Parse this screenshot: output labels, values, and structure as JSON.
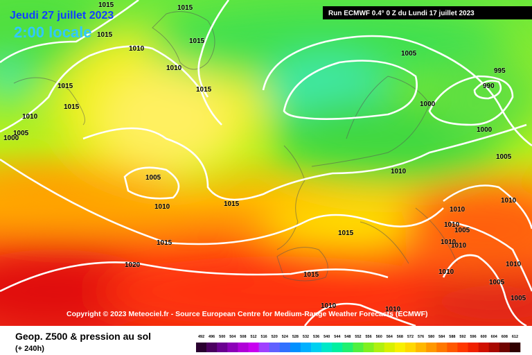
{
  "header": {
    "date": "Jeudi 27 juillet 2023",
    "time": "2:00 locale",
    "run": "Run ECMWF 0.4° 0 Z du Lundi 17 juillet 2023"
  },
  "isobar_labels": [
    1015,
    1015,
    1015,
    1015,
    1010,
    1010,
    1015,
    1015,
    1015,
    1010,
    1005,
    1000,
    1005,
    995,
    990,
    1000,
    1000,
    1005,
    1010,
    1005,
    1010,
    1015,
    1010,
    1010,
    1010,
    1005,
    1015,
    1010,
    1010,
    1015,
    1020,
    1015,
    1010,
    1010,
    1005,
    1005,
    1010,
    1010
  ],
  "copyright": "Copyright © 2023 Meteociel.fr - Source European Centre for Medium-Range Weather Forecasts (ECMWF)",
  "footer": {
    "title": "Geop. Z500 & pression au sol",
    "lead": "(+ 240h)"
  },
  "legend": {
    "values": [
      492,
      496,
      500,
      504,
      508,
      512,
      516,
      520,
      524,
      528,
      532,
      536,
      540,
      544,
      548,
      552,
      556,
      560,
      564,
      568,
      572,
      576,
      580,
      584,
      588,
      592,
      596,
      600,
      604,
      608,
      612
    ],
    "colors": [
      "#2a0030",
      "#4b0060",
      "#6a0090",
      "#8c00b8",
      "#b000d8",
      "#c800f0",
      "#a040ff",
      "#6060ff",
      "#3070ff",
      "#0090ff",
      "#00b0ff",
      "#00d0f0",
      "#00e8c8",
      "#00f0a0",
      "#20f070",
      "#50f040",
      "#80f020",
      "#b0f010",
      "#d8f000",
      "#f8f000",
      "#ffd800",
      "#ffb800",
      "#ff9800",
      "#ff7800",
      "#ff5800",
      "#ff3800",
      "#f02000",
      "#d01000",
      "#a80800",
      "#700400",
      "#300000"
    ]
  }
}
